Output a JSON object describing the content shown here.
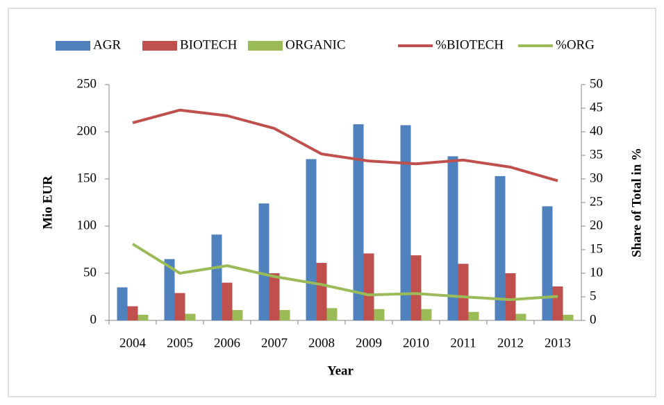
{
  "chart_data": {
    "type": "bar",
    "categories": [
      "2004",
      "2005",
      "2006",
      "2007",
      "2008",
      "2009",
      "2010",
      "2011",
      "2012",
      "2013"
    ],
    "xlabel": "Year",
    "ylabel": "Mio EUR",
    "y2label": "Share of Total in %",
    "ylim": [
      0,
      250
    ],
    "yticks": [
      0,
      50,
      100,
      150,
      200,
      250
    ],
    "y2lim": [
      0,
      50
    ],
    "y2ticks": [
      0,
      5,
      10,
      15,
      20,
      25,
      30,
      35,
      40,
      45,
      50
    ],
    "grid": false,
    "legend": "top",
    "series": [
      {
        "name": "AGR",
        "type": "bar",
        "color": "#4f81bd",
        "values": [
          35,
          65,
          91,
          124,
          171,
          208,
          207,
          174,
          153,
          121
        ]
      },
      {
        "name": "BIOTECH",
        "type": "bar",
        "color": "#c0504d",
        "values": [
          15,
          29,
          40,
          50,
          61,
          71,
          69,
          60,
          50,
          36
        ]
      },
      {
        "name": "ORGANIC",
        "type": "bar",
        "color": "#9bbb59",
        "values": [
          6,
          7,
          11,
          11,
          13,
          12,
          12,
          9,
          7,
          6
        ]
      },
      {
        "name": "%BIOTECH",
        "type": "line",
        "axis": "y2",
        "color": "#c0504d",
        "values": [
          41.9,
          44.6,
          43.4,
          40.7,
          35.3,
          33.8,
          33.2,
          34,
          32.5,
          29.6
        ]
      },
      {
        "name": "%ORG",
        "type": "line",
        "axis": "y2",
        "color": "#9bbb59",
        "values": [
          16.2,
          10,
          11.6,
          9.3,
          7.6,
          5.4,
          5.7,
          5,
          4.4,
          5.1
        ]
      }
    ]
  }
}
